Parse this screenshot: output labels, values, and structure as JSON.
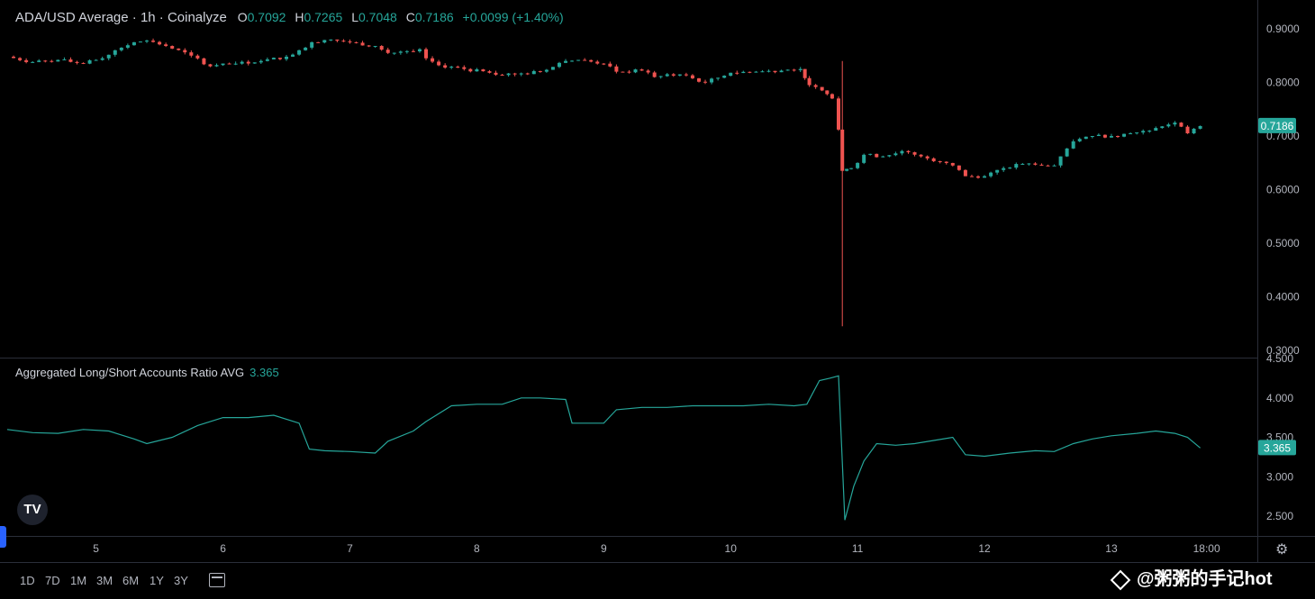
{
  "header": {
    "title": "ADA/USD Average · 1h · Coinalyze",
    "open_label": "O",
    "open": "0.7092",
    "high_label": "H",
    "high": "0.7265",
    "low_label": "L",
    "low": "0.7048",
    "close_label": "C",
    "close": "0.7186",
    "change": "+0.0099 (+1.40%)"
  },
  "indicator": {
    "title": "Aggregated Long/Short Accounts Ratio AVG",
    "value": "3.365"
  },
  "logo_text": "TV",
  "ranges": [
    "1D",
    "7D",
    "1M",
    "3M",
    "6M",
    "1Y",
    "3Y"
  ],
  "watermark": "@粥粥的手记hot",
  "colors": {
    "up": "#26a69a",
    "down": "#ef5350",
    "line": "#26a69a",
    "grid": "#1e222d"
  },
  "chart_data": [
    {
      "type": "candlestick",
      "title": "ADA/USD Average · 1h · Coinalyze",
      "ylim": [
        0.3,
        0.9
      ],
      "y_ticks": [
        "0.9000",
        "0.8000",
        "0.7000",
        "0.6000",
        "0.5000",
        "0.4000",
        "0.3000"
      ],
      "last_price_label": "0.7186",
      "x_ticks": [
        "5",
        "6",
        "7",
        "8",
        "9",
        "10",
        "11",
        "12",
        "13",
        "18:00"
      ],
      "x_tick_days": [
        5,
        6,
        7,
        8,
        9,
        10,
        11,
        12,
        13,
        13.75
      ],
      "x_range_days": [
        4.3,
        14.15
      ],
      "series": [
        {
          "day": 4.3,
          "close": 0.848
        },
        {
          "day": 4.5,
          "close": 0.838
        },
        {
          "day": 4.7,
          "close": 0.842
        },
        {
          "day": 4.9,
          "close": 0.835
        },
        {
          "day": 5.05,
          "close": 0.845
        },
        {
          "day": 5.15,
          "close": 0.86
        },
        {
          "day": 5.3,
          "close": 0.875
        },
        {
          "day": 5.4,
          "close": 0.878
        },
        {
          "day": 5.55,
          "close": 0.868
        },
        {
          "day": 5.75,
          "close": 0.85
        },
        {
          "day": 5.9,
          "close": 0.83
        },
        {
          "day": 6.1,
          "close": 0.835
        },
        {
          "day": 6.3,
          "close": 0.84
        },
        {
          "day": 6.5,
          "close": 0.848
        },
        {
          "day": 6.6,
          "close": 0.86
        },
        {
          "day": 6.7,
          "close": 0.875
        },
        {
          "day": 6.85,
          "close": 0.88
        },
        {
          "day": 7.0,
          "close": 0.875
        },
        {
          "day": 7.2,
          "close": 0.868
        },
        {
          "day": 7.3,
          "close": 0.855
        },
        {
          "day": 7.5,
          "close": 0.858
        },
        {
          "day": 7.55,
          "close": 0.862
        },
        {
          "day": 7.6,
          "close": 0.845
        },
        {
          "day": 7.7,
          "close": 0.832
        },
        {
          "day": 7.9,
          "close": 0.825
        },
        {
          "day": 8.1,
          "close": 0.818
        },
        {
          "day": 8.3,
          "close": 0.815
        },
        {
          "day": 8.5,
          "close": 0.82
        },
        {
          "day": 8.7,
          "close": 0.84
        },
        {
          "day": 8.8,
          "close": 0.842
        },
        {
          "day": 9.0,
          "close": 0.835
        },
        {
          "day": 9.1,
          "close": 0.82
        },
        {
          "day": 9.3,
          "close": 0.822
        },
        {
          "day": 9.4,
          "close": 0.81
        },
        {
          "day": 9.6,
          "close": 0.815
        },
        {
          "day": 9.8,
          "close": 0.8
        },
        {
          "day": 10.0,
          "close": 0.818
        },
        {
          "day": 10.2,
          "close": 0.82
        },
        {
          "day": 10.4,
          "close": 0.822
        },
        {
          "day": 10.55,
          "close": 0.825
        },
        {
          "day": 10.62,
          "close": 0.795
        },
        {
          "day": 10.72,
          "close": 0.785
        },
        {
          "day": 10.8,
          "close": 0.77
        },
        {
          "day": 10.85,
          "close": 0.712
        },
        {
          "day": 10.88,
          "close": 0.635,
          "low": 0.345,
          "high": 0.84
        },
        {
          "day": 10.95,
          "close": 0.64
        },
        {
          "day": 11.05,
          "close": 0.665
        },
        {
          "day": 11.2,
          "close": 0.662
        },
        {
          "day": 11.35,
          "close": 0.672
        },
        {
          "day": 11.5,
          "close": 0.662
        },
        {
          "day": 11.65,
          "close": 0.652
        },
        {
          "day": 11.75,
          "close": 0.645
        },
        {
          "day": 11.85,
          "close": 0.625
        },
        {
          "day": 12.0,
          "close": 0.625
        },
        {
          "day": 12.15,
          "close": 0.64
        },
        {
          "day": 12.3,
          "close": 0.648
        },
        {
          "day": 12.45,
          "close": 0.645
        },
        {
          "day": 12.55,
          "close": 0.645
        },
        {
          "day": 12.6,
          "close": 0.662
        },
        {
          "day": 12.7,
          "close": 0.69
        },
        {
          "day": 12.85,
          "close": 0.7
        },
        {
          "day": 13.0,
          "close": 0.7
        },
        {
          "day": 13.15,
          "close": 0.705
        },
        {
          "day": 13.3,
          "close": 0.71
        },
        {
          "day": 13.4,
          "close": 0.718
        },
        {
          "day": 13.5,
          "close": 0.725
        },
        {
          "day": 13.6,
          "close": 0.705
        },
        {
          "day": 13.7,
          "close": 0.7186
        }
      ]
    },
    {
      "type": "line",
      "title": "Aggregated Long/Short Accounts Ratio AVG",
      "ylim": [
        2.35,
        4.5
      ],
      "y_ticks": [
        "4.500",
        "4.000",
        "3.500",
        "3.000",
        "2.500"
      ],
      "last_value_label": "3.365",
      "series": [
        {
          "day": 4.3,
          "value": 3.6
        },
        {
          "day": 4.5,
          "value": 3.56
        },
        {
          "day": 4.7,
          "value": 3.55
        },
        {
          "day": 4.9,
          "value": 3.6
        },
        {
          "day": 5.1,
          "value": 3.58
        },
        {
          "day": 5.3,
          "value": 3.48
        },
        {
          "day": 5.4,
          "value": 3.42
        },
        {
          "day": 5.6,
          "value": 3.5
        },
        {
          "day": 5.8,
          "value": 3.65
        },
        {
          "day": 6.0,
          "value": 3.75
        },
        {
          "day": 6.2,
          "value": 3.75
        },
        {
          "day": 6.4,
          "value": 3.78
        },
        {
          "day": 6.6,
          "value": 3.68
        },
        {
          "day": 6.68,
          "value": 3.35
        },
        {
          "day": 6.8,
          "value": 3.33
        },
        {
          "day": 7.0,
          "value": 3.32
        },
        {
          "day": 7.2,
          "value": 3.3
        },
        {
          "day": 7.3,
          "value": 3.45
        },
        {
          "day": 7.5,
          "value": 3.58
        },
        {
          "day": 7.6,
          "value": 3.7
        },
        {
          "day": 7.8,
          "value": 3.9
        },
        {
          "day": 8.0,
          "value": 3.92
        },
        {
          "day": 8.2,
          "value": 3.92
        },
        {
          "day": 8.35,
          "value": 4.0
        },
        {
          "day": 8.5,
          "value": 4.0
        },
        {
          "day": 8.7,
          "value": 3.98
        },
        {
          "day": 8.75,
          "value": 3.68
        },
        {
          "day": 9.0,
          "value": 3.68
        },
        {
          "day": 9.1,
          "value": 3.85
        },
        {
          "day": 9.3,
          "value": 3.88
        },
        {
          "day": 9.5,
          "value": 3.88
        },
        {
          "day": 9.7,
          "value": 3.9
        },
        {
          "day": 9.9,
          "value": 3.9
        },
        {
          "day": 10.1,
          "value": 3.9
        },
        {
          "day": 10.3,
          "value": 3.92
        },
        {
          "day": 10.5,
          "value": 3.9
        },
        {
          "day": 10.6,
          "value": 3.92
        },
        {
          "day": 10.7,
          "value": 4.22
        },
        {
          "day": 10.78,
          "value": 4.25
        },
        {
          "day": 10.85,
          "value": 4.28
        },
        {
          "day": 10.9,
          "value": 2.45
        },
        {
          "day": 10.97,
          "value": 2.88
        },
        {
          "day": 11.05,
          "value": 3.2
        },
        {
          "day": 11.15,
          "value": 3.42
        },
        {
          "day": 11.3,
          "value": 3.4
        },
        {
          "day": 11.45,
          "value": 3.42
        },
        {
          "day": 11.6,
          "value": 3.46
        },
        {
          "day": 11.75,
          "value": 3.5
        },
        {
          "day": 11.85,
          "value": 3.28
        },
        {
          "day": 12.0,
          "value": 3.26
        },
        {
          "day": 12.2,
          "value": 3.3
        },
        {
          "day": 12.4,
          "value": 3.33
        },
        {
          "day": 12.55,
          "value": 3.32
        },
        {
          "day": 12.7,
          "value": 3.42
        },
        {
          "day": 12.85,
          "value": 3.48
        },
        {
          "day": 13.0,
          "value": 3.52
        },
        {
          "day": 13.2,
          "value": 3.55
        },
        {
          "day": 13.35,
          "value": 3.58
        },
        {
          "day": 13.5,
          "value": 3.55
        },
        {
          "day": 13.6,
          "value": 3.5
        },
        {
          "day": 13.7,
          "value": 3.365
        }
      ]
    }
  ]
}
